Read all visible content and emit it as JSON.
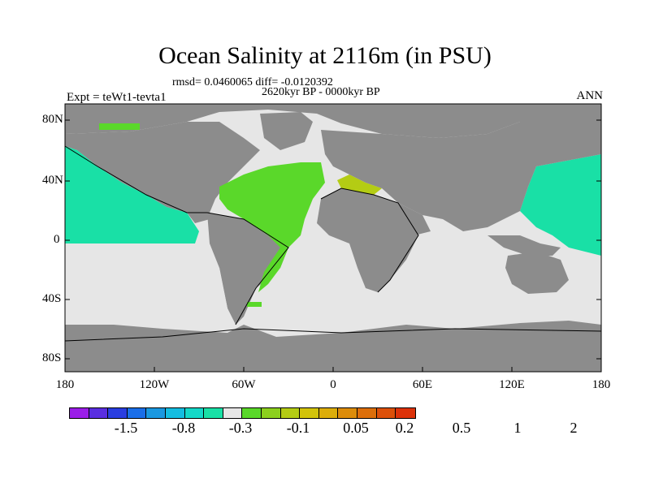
{
  "title": "Ocean Salinity at 2116m (in PSU)",
  "stats_line": "rmsd= 0.0460065 diff= -0.0120392",
  "period": "2620kyr BP - 0000kyr BP",
  "experiment": "Expt = teWt1-tevta1",
  "season": "ANN",
  "lat_labels": [
    "80N",
    "40N",
    "0",
    "40S",
    "80S"
  ],
  "lon_labels": [
    "180",
    "120W",
    "60W",
    "0",
    "60E",
    "120E",
    "180"
  ],
  "colorbar": {
    "colors": [
      "#9b1ee8",
      "#5a2ee0",
      "#2a3ee0",
      "#1a6ee8",
      "#1a98e0",
      "#14bde0",
      "#14d8c8",
      "#19e0a6",
      "#e6e6e6",
      "#5ad82a",
      "#8cd01e",
      "#b4cc14",
      "#d2c30a",
      "#dcad0a",
      "#dc8c0a",
      "#dc6e0a",
      "#dc500a",
      "#dc320a"
    ],
    "labels": [
      "-1.5",
      "-0.8",
      "-0.3",
      "-0.1",
      "0.05",
      "0.2",
      "0.5",
      "1",
      "2"
    ]
  },
  "map_colors": {
    "land": "#8c8c8c",
    "neutral_ocean": "#e6e6e6",
    "negative_anomaly": "#19e0a6",
    "positive_anomaly": "#5ad82a",
    "strong_positive": "#b4cc14"
  }
}
